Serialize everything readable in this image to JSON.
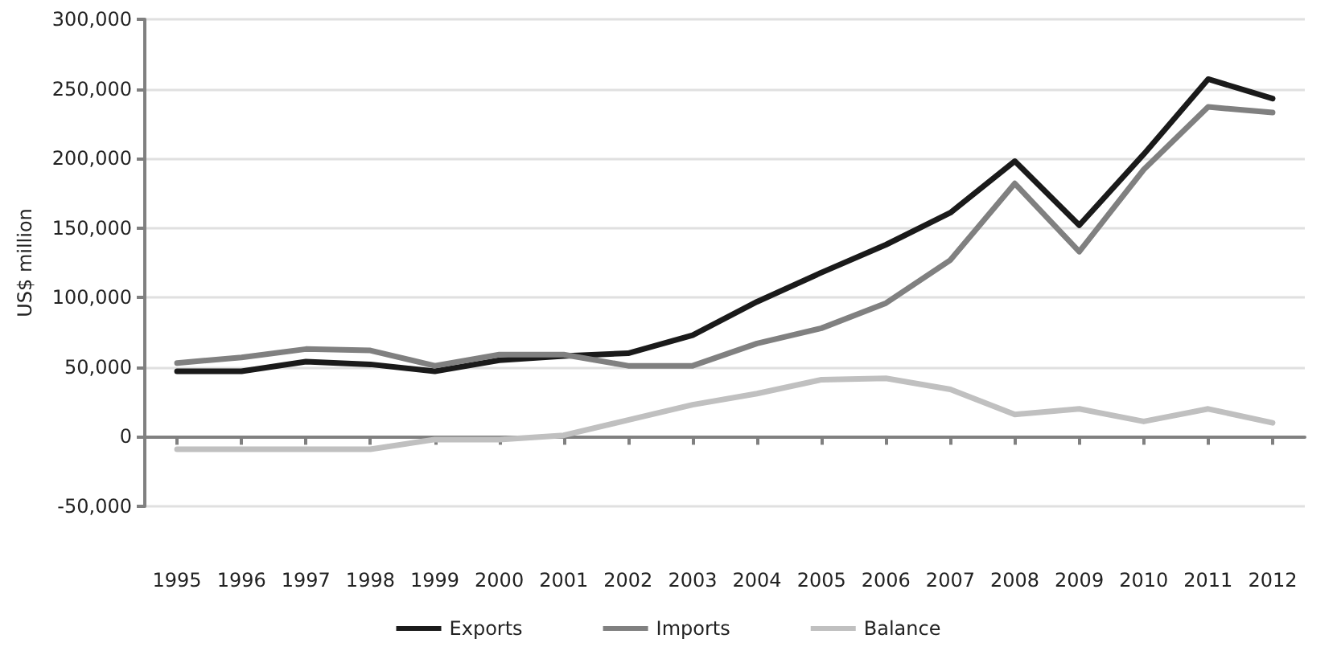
{
  "chart_data": {
    "type": "line",
    "ylabel": "US$ million",
    "categories": [
      "1995",
      "1996",
      "1997",
      "1998",
      "1999",
      "2000",
      "2001",
      "2002",
      "2003",
      "2004",
      "2005",
      "2006",
      "2007",
      "2008",
      "2009",
      "2010",
      "2011",
      "2012"
    ],
    "series": [
      {
        "name": "Exports",
        "color": "#1a1a1a",
        "values": [
          47000,
          47000,
          54000,
          52000,
          47000,
          55000,
          58000,
          60000,
          73000,
          97000,
          118000,
          138000,
          161000,
          198000,
          152000,
          203000,
          257000,
          243000
        ]
      },
      {
        "name": "Imports",
        "color": "#808080",
        "values": [
          53000,
          57000,
          63000,
          62000,
          51000,
          59000,
          59000,
          51000,
          51000,
          67000,
          78000,
          96000,
          127000,
          182000,
          133000,
          192000,
          237000,
          233000
        ]
      },
      {
        "name": "Balance",
        "color": "#c0c0c0",
        "values": [
          -9000,
          -9000,
          -9000,
          -9000,
          -2000,
          -2000,
          1000,
          12000,
          23000,
          31000,
          41000,
          42000,
          34000,
          16000,
          20000,
          11000,
          20000,
          10000
        ]
      }
    ],
    "ylim": [
      -50000,
      300000
    ],
    "yticks": [
      {
        "value": -50000,
        "label": "-50,000"
      },
      0,
      {
        "value": 50000,
        "label": "50,000"
      },
      {
        "value": 100000,
        "label": "100,000"
      },
      {
        "value": 150000,
        "label": "150,000"
      },
      {
        "value": 200000,
        "label": "200,000"
      },
      {
        "value": 250000,
        "label": "250,000"
      },
      {
        "value": 300000,
        "label": "300,000"
      }
    ],
    "grid": "y",
    "legend": "bottom",
    "marker": "none",
    "line_style": "solid"
  }
}
